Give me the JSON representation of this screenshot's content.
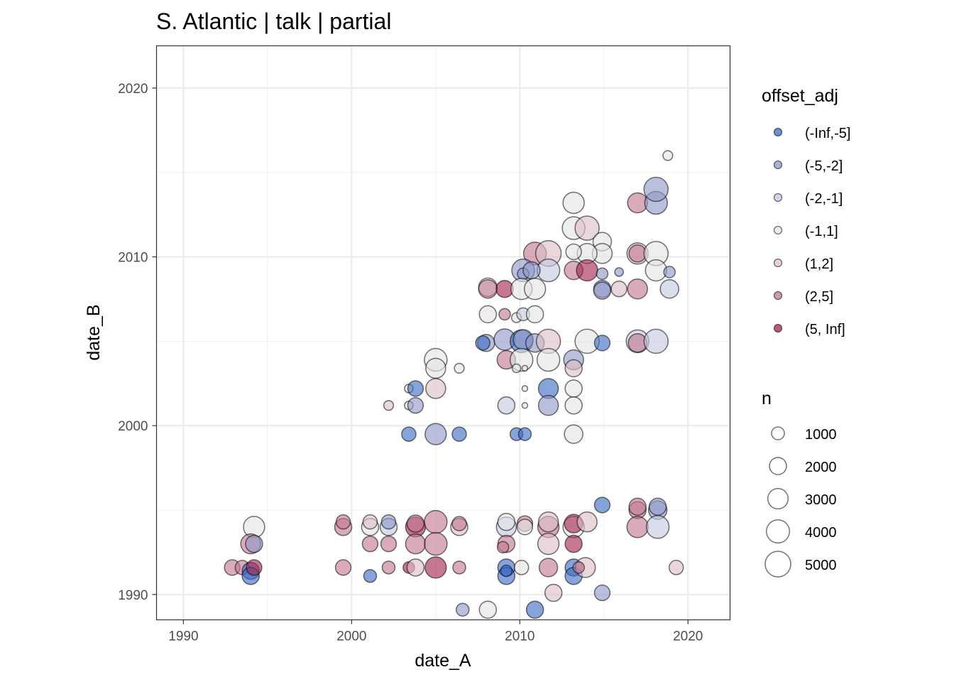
{
  "chart_data": {
    "type": "scatter",
    "title": "S. Atlantic | talk | partial",
    "xlabel": "date_A",
    "ylabel": "date_B",
    "xlim": [
      1988.4,
      2022.5
    ],
    "ylim": [
      1988.5,
      2022.5
    ],
    "xticks": [
      1990,
      2000,
      2010,
      2020
    ],
    "yticks": [
      1990,
      2000,
      2010,
      2020
    ],
    "grid": true,
    "legend_position": "right",
    "color_legend": {
      "title": "offset_adj",
      "categories": [
        "(-Inf,-5]",
        "(-5,-2]",
        "(-2,-1]",
        "(-1,1]",
        "(1,2]",
        "(2,5]",
        "(5, Inf]"
      ],
      "colors": [
        "#3b6bc4",
        "#8f98c9",
        "#c4c8df",
        "#e4e4e4",
        "#dcbfc7",
        "#c27891",
        "#a3244f"
      ]
    },
    "size_legend": {
      "title": "n",
      "values": [
        1000,
        2000,
        3000,
        4000,
        5000
      ],
      "labels": [
        "1000",
        "2000",
        "3000",
        "4000",
        "5000"
      ]
    },
    "point_fields": [
      "date_A",
      "date_B",
      "n",
      "offset_adj_index"
    ],
    "points": [
      [
        1994.2,
        1994.0,
        3300,
        3
      ],
      [
        1994.0,
        1993.0,
        2850,
        5
      ],
      [
        1994.2,
        1993.0,
        2000,
        1
      ],
      [
        1992.9,
        1991.6,
        1600,
        5
      ],
      [
        1993.5,
        1991.6,
        1300,
        5
      ],
      [
        1994.0,
        1991.4,
        2000,
        0
      ],
      [
        1994.0,
        1991.1,
        2000,
        0
      ],
      [
        1994.2,
        1991.6,
        1600,
        6
      ],
      [
        1999.5,
        1994.0,
        2000,
        5
      ],
      [
        1999.5,
        1994.3,
        1300,
        5
      ],
      [
        2001.1,
        1994.0,
        2000,
        3
      ],
      [
        2001.1,
        1994.3,
        1300,
        4
      ],
      [
        2002.2,
        1994.0,
        2000,
        2
      ],
      [
        2002.2,
        1994.3,
        1300,
        1
      ],
      [
        2003.8,
        1994.0,
        2850,
        6
      ],
      [
        2003.8,
        1994.2,
        2000,
        5
      ],
      [
        2005.0,
        1994.3,
        3840,
        5
      ],
      [
        2006.4,
        1994.0,
        2000,
        4
      ],
      [
        2006.4,
        1994.2,
        1300,
        5
      ],
      [
        2001.1,
        1993.0,
        1600,
        5
      ],
      [
        2002.2,
        1993.0,
        1600,
        5
      ],
      [
        2003.8,
        1993.0,
        2850,
        5
      ],
      [
        2005.0,
        1993.0,
        3840,
        5
      ],
      [
        1999.5,
        1991.6,
        1600,
        5
      ],
      [
        2001.1,
        1991.1,
        1000,
        0
      ],
      [
        2002.2,
        1991.6,
        1000,
        5
      ],
      [
        2003.4,
        1991.6,
        750,
        6
      ],
      [
        2003.8,
        1991.6,
        2000,
        4
      ],
      [
        2005.0,
        1991.6,
        3300,
        6
      ],
      [
        2006.4,
        1991.6,
        1000,
        5
      ],
      [
        2009.2,
        1994.0,
        2850,
        2
      ],
      [
        2009.2,
        1994.3,
        2000,
        3
      ],
      [
        2010.3,
        1994.2,
        1600,
        5
      ],
      [
        2010.3,
        1994.0,
        1600,
        3
      ],
      [
        2011.7,
        1994.0,
        3300,
        5
      ],
      [
        2011.7,
        1994.3,
        2850,
        4
      ],
      [
        2013.2,
        1994.0,
        3300,
        3
      ],
      [
        2013.2,
        1994.2,
        2400,
        6
      ],
      [
        2014.0,
        1994.3,
        2850,
        4
      ],
      [
        2009.2,
        1993.0,
        2000,
        5
      ],
      [
        2009.0,
        1992.8,
        750,
        5
      ],
      [
        2011.7,
        1993.0,
        3300,
        4
      ],
      [
        2013.2,
        1993.0,
        2000,
        6
      ],
      [
        2009.2,
        1991.6,
        2000,
        0
      ],
      [
        2009.2,
        1991.1,
        2000,
        0
      ],
      [
        2009.2,
        1991.4,
        750,
        0
      ],
      [
        2010.1,
        1991.6,
        1300,
        3
      ],
      [
        2011.7,
        1991.6,
        2400,
        5
      ],
      [
        2013.2,
        1991.6,
        2000,
        0
      ],
      [
        2013.2,
        1991.1,
        2000,
        0
      ],
      [
        2013.9,
        1991.6,
        2850,
        4
      ],
      [
        2013.5,
        1991.6,
        750,
        5
      ],
      [
        2014.9,
        1995.3,
        1600,
        0
      ],
      [
        2017.0,
        1995.0,
        2000,
        5
      ],
      [
        2017.0,
        1995.2,
        2000,
        5
      ],
      [
        2018.2,
        1995.0,
        2400,
        1
      ],
      [
        2018.2,
        1995.2,
        2000,
        1
      ],
      [
        2017.0,
        1994.0,
        3300,
        5
      ],
      [
        2018.2,
        1994.0,
        3840,
        2
      ],
      [
        2019.3,
        1991.6,
        1300,
        4
      ],
      [
        2012.0,
        1990.1,
        2000,
        4
      ],
      [
        2014.9,
        1990.1,
        1600,
        1
      ],
      [
        2006.6,
        1989.1,
        1000,
        1
      ],
      [
        2008.1,
        1989.1,
        2000,
        3
      ],
      [
        2010.9,
        1989.1,
        2000,
        0
      ],
      [
        2013.2,
        2013.2,
        3300,
        3
      ],
      [
        2017.0,
        2013.2,
        2850,
        5
      ],
      [
        2018.1,
        2013.2,
        3840,
        1
      ],
      [
        2018.1,
        2014.0,
        4400,
        1
      ],
      [
        2013.2,
        2011.7,
        3840,
        3
      ],
      [
        2014.0,
        2011.7,
        4400,
        4
      ],
      [
        2014.9,
        2010.9,
        2400,
        3
      ],
      [
        2014.9,
        2010.2,
        2850,
        3
      ],
      [
        2014.0,
        2010.2,
        2850,
        3
      ],
      [
        2013.2,
        2010.3,
        1600,
        3
      ],
      [
        2010.9,
        2010.2,
        3840,
        5
      ],
      [
        2011.7,
        2010.2,
        5000,
        4
      ],
      [
        2010.2,
        2009.2,
        3840,
        1
      ],
      [
        2010.2,
        2009.0,
        750,
        1
      ],
      [
        2011.7,
        2009.2,
        3840,
        2
      ],
      [
        2010.7,
        2009.2,
        2000,
        1
      ],
      [
        2013.2,
        2009.2,
        2400,
        5
      ],
      [
        2014.0,
        2009.2,
        3300,
        6
      ],
      [
        2014.9,
        2009.0,
        750,
        1
      ],
      [
        2015.9,
        2009.1,
        350,
        1
      ],
      [
        2017.0,
        2010.2,
        3300,
        4
      ],
      [
        2017.0,
        2010.2,
        2000,
        5
      ],
      [
        2018.1,
        2010.2,
        4400,
        3
      ],
      [
        2018.1,
        2009.2,
        3300,
        3
      ],
      [
        2018.9,
        2009.1,
        750,
        1
      ],
      [
        2008.1,
        2008.2,
        2400,
        3
      ],
      [
        2008.1,
        2008.1,
        2400,
        5
      ],
      [
        2009.1,
        2008.1,
        2000,
        6
      ],
      [
        2010.1,
        2008.1,
        3300,
        3
      ],
      [
        2010.9,
        2008.1,
        3300,
        3
      ],
      [
        2014.9,
        2008.1,
        2000,
        1
      ],
      [
        2014.9,
        2008.0,
        2000,
        1
      ],
      [
        2015.9,
        2008.1,
        1600,
        4
      ],
      [
        2017.0,
        2008.1,
        2850,
        5
      ],
      [
        2018.9,
        2008.1,
        2400,
        2
      ],
      [
        2008.1,
        2006.6,
        2000,
        3
      ],
      [
        2009.1,
        2006.6,
        750,
        5
      ],
      [
        2009.8,
        2006.4,
        500,
        3
      ],
      [
        2010.2,
        2006.6,
        1000,
        2
      ],
      [
        2010.9,
        2006.6,
        2000,
        3
      ],
      [
        2008.0,
        2004.9,
        2000,
        1
      ],
      [
        2007.8,
        2004.9,
        1300,
        0
      ],
      [
        2009.1,
        2005.1,
        3300,
        1
      ],
      [
        2010.1,
        2005.0,
        3840,
        0
      ],
      [
        2010.2,
        2005.1,
        2850,
        1
      ],
      [
        2010.9,
        2004.9,
        2400,
        1
      ],
      [
        2011.7,
        2005.0,
        4400,
        4
      ],
      [
        2014.0,
        2005.0,
        4400,
        3
      ],
      [
        2014.9,
        2004.9,
        1600,
        0
      ],
      [
        2017.0,
        2005.0,
        3840,
        2
      ],
      [
        2017.0,
        2004.9,
        2400,
        5
      ],
      [
        2018.1,
        2005.0,
        4400,
        2
      ],
      [
        2005.0,
        2003.9,
        3840,
        3
      ],
      [
        2005.0,
        2003.4,
        2850,
        3
      ],
      [
        2006.4,
        2003.4,
        500,
        3
      ],
      [
        2009.2,
        2003.9,
        2400,
        5
      ],
      [
        2010.1,
        2003.9,
        3840,
        3
      ],
      [
        2009.8,
        2003.4,
        350,
        3
      ],
      [
        2010.3,
        2003.4,
        100,
        3
      ],
      [
        2011.7,
        2003.9,
        3840,
        3
      ],
      [
        2013.2,
        2003.9,
        2850,
        1
      ],
      [
        2013.2,
        2003.4,
        2000,
        4
      ],
      [
        2003.4,
        2002.2,
        350,
        3
      ],
      [
        2003.8,
        2002.2,
        1600,
        0
      ],
      [
        2005.0,
        2002.2,
        2850,
        4
      ],
      [
        2010.3,
        2002.2,
        100,
        3
      ],
      [
        2011.7,
        2002.2,
        2850,
        0
      ],
      [
        2013.2,
        2002.2,
        2000,
        3
      ],
      [
        2003.4,
        2001.2,
        350,
        3
      ],
      [
        2003.8,
        2001.2,
        1600,
        1
      ],
      [
        2009.2,
        2001.2,
        2000,
        2
      ],
      [
        2010.3,
        2001.2,
        100,
        3
      ],
      [
        2011.7,
        2001.2,
        2850,
        1
      ],
      [
        2013.2,
        2001.2,
        2000,
        3
      ],
      [
        2002.2,
        2001.2,
        500,
        4
      ],
      [
        2003.4,
        1999.5,
        1300,
        0
      ],
      [
        2005.0,
        1999.5,
        3300,
        1
      ],
      [
        2006.4,
        1999.5,
        1300,
        0
      ],
      [
        2009.8,
        1999.5,
        1000,
        0
      ],
      [
        2010.3,
        1999.5,
        1000,
        0
      ],
      [
        2013.2,
        1999.5,
        2400,
        3
      ],
      [
        2018.8,
        2016.0,
        500,
        3
      ]
    ]
  }
}
